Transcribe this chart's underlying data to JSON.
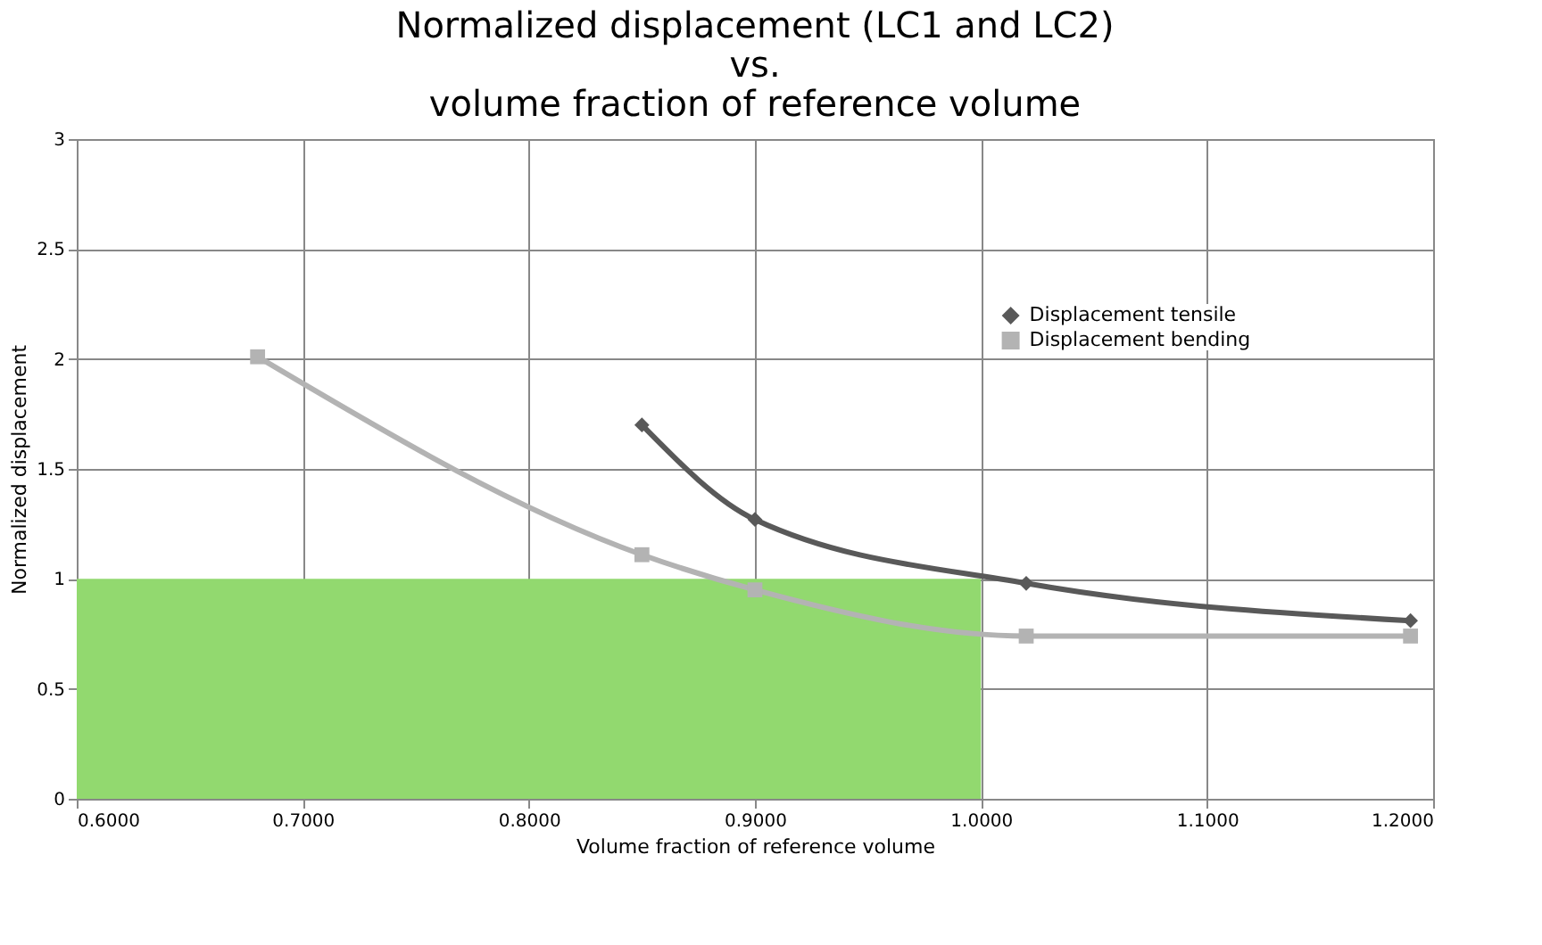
{
  "chart_data": {
    "type": "line",
    "title": "Normalized displacement (LC1 and LC2)\nvs.\nvolume fraction of reference volume",
    "xlabel": "Volume fraction of reference volume",
    "ylabel": "Normalized displacement",
    "xlim": [
      0.6,
      1.2
    ],
    "xticks": [
      {
        "value": 0.6,
        "label": "0.6000"
      },
      {
        "value": 0.7,
        "label": "0.7000"
      },
      {
        "value": 0.8,
        "label": "0.8000"
      },
      {
        "value": 0.9,
        "label": "0.9000"
      },
      {
        "value": 1.0,
        "label": "1.0000"
      },
      {
        "value": 1.1,
        "label": "1.1000"
      },
      {
        "value": 1.2,
        "label": "1.2000"
      }
    ],
    "ylim": [
      0,
      3
    ],
    "yticks": [
      0,
      0.5,
      1,
      1.5,
      2,
      2.5,
      3
    ],
    "grid": true,
    "legend": "right",
    "series": [
      {
        "type": "area",
        "color": "#92d96f",
        "x": [
          0.6,
          1.0
        ],
        "values": [
          1,
          1
        ]
      },
      {
        "name": "Displacement tensile",
        "color": "#595959",
        "marker": "diamond",
        "x": [
          0.85,
          0.9,
          1.02,
          1.19
        ],
        "values": [
          1.7,
          1.27,
          0.98,
          0.81
        ]
      },
      {
        "name": "Displacement bending",
        "color": "#b3b3b3",
        "marker": "square",
        "x": [
          0.68,
          0.85,
          0.9,
          1.02,
          1.19
        ],
        "values": [
          2.01,
          1.11,
          0.95,
          0.74,
          0.74
        ]
      }
    ]
  }
}
